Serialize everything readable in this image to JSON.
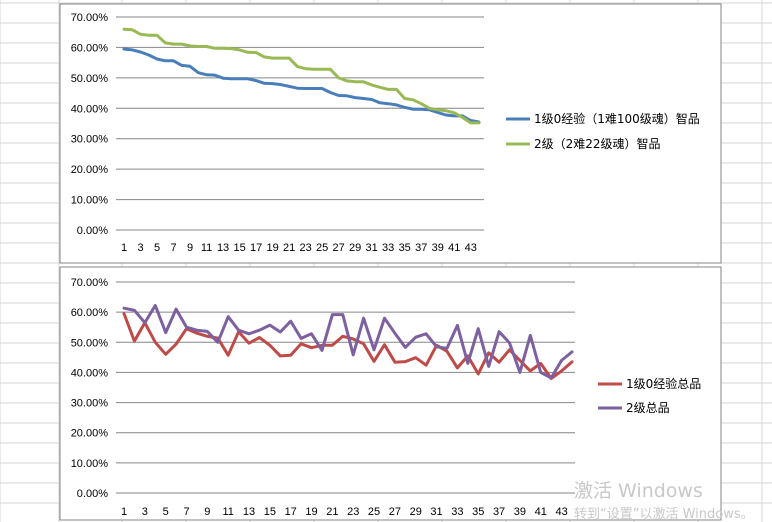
{
  "colors": {
    "series_blue": "#4a7ebb",
    "series_green": "#98b954",
    "series_red": "#be4b48",
    "series_purple": "#7d60a0",
    "gridline": "#868686",
    "cell_grid": "#d4d4d4",
    "chart_border": "#868686"
  },
  "watermark": {
    "line1": "激活 Windows",
    "line2": "转到“设置”以激活 Windows。"
  },
  "chart_data": [
    {
      "type": "line",
      "title": "",
      "xlabel": "",
      "ylabel": "",
      "ylim": [
        0,
        0.7
      ],
      "yticks": [
        "0.00%",
        "10.00%",
        "20.00%",
        "30.00%",
        "40.00%",
        "50.00%",
        "60.00%",
        "70.00%"
      ],
      "x": [
        1,
        2,
        3,
        4,
        5,
        6,
        7,
        8,
        9,
        10,
        11,
        12,
        13,
        14,
        15,
        16,
        17,
        18,
        19,
        20,
        21,
        22,
        23,
        24,
        25,
        26,
        27,
        28,
        29,
        30,
        31,
        32,
        33,
        34,
        35,
        36,
        37,
        38,
        39,
        40,
        41,
        42,
        43,
        44
      ],
      "xtick_labels": [
        "1",
        "3",
        "5",
        "7",
        "9",
        "11",
        "13",
        "15",
        "17",
        "19",
        "21",
        "23",
        "25",
        "27",
        "29",
        "31",
        "33",
        "35",
        "37",
        "39",
        "41",
        "43"
      ],
      "grid": true,
      "legend_position": "right",
      "series": [
        {
          "name": "1级0经验（1难100级魂）智品",
          "color": "#4a7ebb",
          "values": [
            0.595,
            0.592,
            0.585,
            0.575,
            0.562,
            0.556,
            0.556,
            0.541,
            0.538,
            0.517,
            0.51,
            0.509,
            0.499,
            0.497,
            0.497,
            0.497,
            0.491,
            0.482,
            0.481,
            0.478,
            0.472,
            0.466,
            0.465,
            0.465,
            0.465,
            0.452,
            0.442,
            0.441,
            0.435,
            0.432,
            0.429,
            0.418,
            0.415,
            0.411,
            0.403,
            0.397,
            0.397,
            0.395,
            0.386,
            0.378,
            0.375,
            0.375,
            0.36,
            0.355
          ]
        },
        {
          "name": "2级（2难22级魂）智品",
          "color": "#98b954",
          "values": [
            0.66,
            0.658,
            0.643,
            0.64,
            0.64,
            0.615,
            0.611,
            0.611,
            0.605,
            0.603,
            0.603,
            0.597,
            0.597,
            0.596,
            0.592,
            0.584,
            0.583,
            0.569,
            0.565,
            0.565,
            0.565,
            0.537,
            0.53,
            0.528,
            0.528,
            0.528,
            0.5,
            0.49,
            0.487,
            0.487,
            0.477,
            0.469,
            0.462,
            0.462,
            0.432,
            0.428,
            0.415,
            0.4,
            0.395,
            0.392,
            0.385,
            0.37,
            0.352,
            0.352
          ]
        }
      ]
    },
    {
      "type": "line",
      "title": "",
      "xlabel": "",
      "ylabel": "",
      "ylim": [
        0,
        0.7
      ],
      "yticks": [
        "0.00%",
        "10.00%",
        "20.00%",
        "30.00%",
        "40.00%",
        "50.00%",
        "60.00%",
        "70.00%"
      ],
      "x": [
        1,
        2,
        3,
        4,
        5,
        6,
        7,
        8,
        9,
        10,
        11,
        12,
        13,
        14,
        15,
        16,
        17,
        18,
        19,
        20,
        21,
        22,
        23,
        24,
        25,
        26,
        27,
        28,
        29,
        30,
        31,
        32,
        33,
        34,
        35,
        36,
        37,
        38,
        39,
        40,
        41,
        42,
        43,
        44
      ],
      "xtick_labels": [
        "1",
        "3",
        "5",
        "7",
        "9",
        "11",
        "13",
        "15",
        "17",
        "19",
        "21",
        "23",
        "25",
        "27",
        "29",
        "31",
        "33",
        "35",
        "37",
        "39",
        "41",
        "43"
      ],
      "grid": true,
      "legend_position": "right",
      "series": [
        {
          "name": "1级0经验总品",
          "color": "#be4b48",
          "values": [
            0.595,
            0.504,
            0.565,
            0.5,
            0.46,
            0.494,
            0.545,
            0.53,
            0.52,
            0.514,
            0.457,
            0.535,
            0.497,
            0.516,
            0.49,
            0.455,
            0.457,
            0.495,
            0.482,
            0.49,
            0.49,
            0.52,
            0.511,
            0.495,
            0.437,
            0.492,
            0.434,
            0.436,
            0.449,
            0.424,
            0.49,
            0.47,
            0.415,
            0.455,
            0.395,
            0.465,
            0.434,
            0.475,
            0.44,
            0.405,
            0.43,
            0.38,
            0.405,
            0.435
          ]
        },
        {
          "name": "2级总品",
          "color": "#7d60a0",
          "values": [
            0.613,
            0.606,
            0.565,
            0.622,
            0.532,
            0.61,
            0.55,
            0.54,
            0.536,
            0.5,
            0.585,
            0.54,
            0.528,
            0.54,
            0.557,
            0.534,
            0.57,
            0.513,
            0.528,
            0.473,
            0.592,
            0.592,
            0.458,
            0.58,
            0.475,
            0.58,
            0.53,
            0.483,
            0.517,
            0.528,
            0.485,
            0.48,
            0.556,
            0.43,
            0.545,
            0.42,
            0.535,
            0.498,
            0.4,
            0.523,
            0.4,
            0.382,
            0.44,
            0.468
          ]
        }
      ]
    }
  ]
}
